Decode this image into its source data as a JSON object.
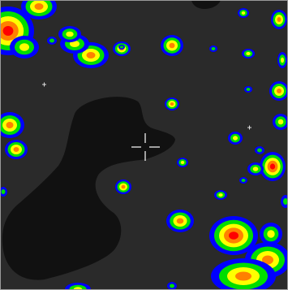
{
  "viewer": {
    "background_color": "#2a2a2a",
    "void_color": "#111111",
    "frame_color": "#9a9a9a",
    "cursor": {
      "icon": "crosshair-cursor-icon",
      "color": "#ffffff"
    },
    "colormap": [
      "#0000ff",
      "#00dd00",
      "#ffff00",
      "#ff8000",
      "#ff0000"
    ]
  }
}
